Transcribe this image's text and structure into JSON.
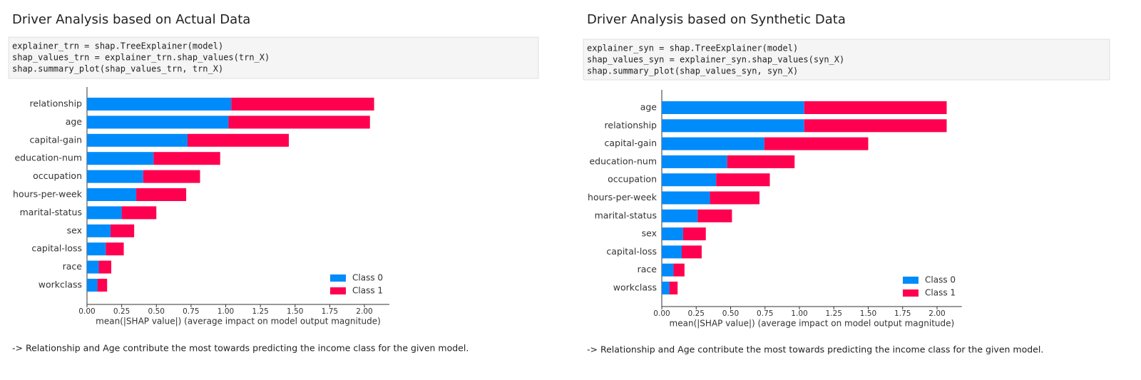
{
  "panels": [
    {
      "title": "Driver Analysis based on Actual Data",
      "code": [
        "explainer_trn = shap.TreeExplainer(model)",
        "shap_values_trn = explainer_trn.shap_values(trn_X)",
        "shap.summary_plot(shap_values_trn, trn_X)"
      ],
      "note": "-> Relationship and Age contribute the most towards predicting the income class for the given model."
    },
    {
      "title": "Driver Analysis based on Synthetic Data",
      "code": [
        "explainer_syn = shap.TreeExplainer(model)",
        "shap_values_syn = explainer_syn.shap_values(syn_X)",
        "shap.summary_plot(shap_values_syn, syn_X)"
      ],
      "note": "-> Relationship and Age contribute the most towards predicting the income class for the given model."
    }
  ],
  "chart_data": [
    {
      "type": "stacked-barh",
      "x_label": "mean(|SHAP value|) (average impact on model output magnitude)",
      "categories": [
        "relationship",
        "age",
        "capital-gain",
        "education-num",
        "occupation",
        "hours-per-week",
        "marital-status",
        "sex",
        "capital-loss",
        "race",
        "workclass"
      ],
      "series": [
        {
          "name": "Class 0",
          "color": "#008bfb",
          "values": [
            1.04,
            1.02,
            0.725,
            0.48,
            0.405,
            0.355,
            0.25,
            0.17,
            0.135,
            0.085,
            0.075
          ]
        },
        {
          "name": "Class 1",
          "color": "#ff0051",
          "values": [
            1.03,
            1.02,
            0.73,
            0.48,
            0.41,
            0.36,
            0.25,
            0.17,
            0.13,
            0.09,
            0.07
          ]
        }
      ],
      "xlim": [
        0,
        2.18
      ],
      "xticks": [
        {
          "value": 0,
          "label": "0.00"
        },
        {
          "value": 0.25,
          "label": "0.25"
        },
        {
          "value": 0.5,
          "label": "0.50"
        },
        {
          "value": 0.75,
          "label": "0.75"
        },
        {
          "value": 1,
          "label": "1.00"
        },
        {
          "value": 1.25,
          "label": "1.25"
        },
        {
          "value": 1.5,
          "label": "1.50"
        },
        {
          "value": 1.75,
          "label": "1.75"
        },
        {
          "value": 2,
          "label": "2.00"
        }
      ],
      "legend": "lower right"
    },
    {
      "type": "stacked-barh",
      "x_label": "mean(|SHAP value|) (average impact on model output magnitude)",
      "categories": [
        "age",
        "relationship",
        "capital-gain",
        "education-num",
        "occupation",
        "hours-per-week",
        "marital-status",
        "sex",
        "capital-loss",
        "race",
        "workclass"
      ],
      "series": [
        {
          "name": "Class 0",
          "color": "#008bfb",
          "values": [
            1.035,
            1.035,
            0.745,
            0.475,
            0.395,
            0.35,
            0.26,
            0.155,
            0.145,
            0.085,
            0.055
          ]
        },
        {
          "name": "Class 1",
          "color": "#ff0051",
          "values": [
            1.035,
            1.035,
            0.755,
            0.49,
            0.39,
            0.36,
            0.25,
            0.165,
            0.145,
            0.08,
            0.06
          ]
        }
      ],
      "xlim": [
        0,
        2.18
      ],
      "xticks": [
        {
          "value": 0,
          "label": "0.00"
        },
        {
          "value": 0.25,
          "label": "0.25"
        },
        {
          "value": 0.5,
          "label": "0.50"
        },
        {
          "value": 0.75,
          "label": "0.75"
        },
        {
          "value": 1,
          "label": "1.00"
        },
        {
          "value": 1.25,
          "label": "1.25"
        },
        {
          "value": 1.5,
          "label": "1.50"
        },
        {
          "value": 1.75,
          "label": "1.75"
        },
        {
          "value": 2,
          "label": "2.00"
        }
      ],
      "legend": "lower right"
    }
  ]
}
